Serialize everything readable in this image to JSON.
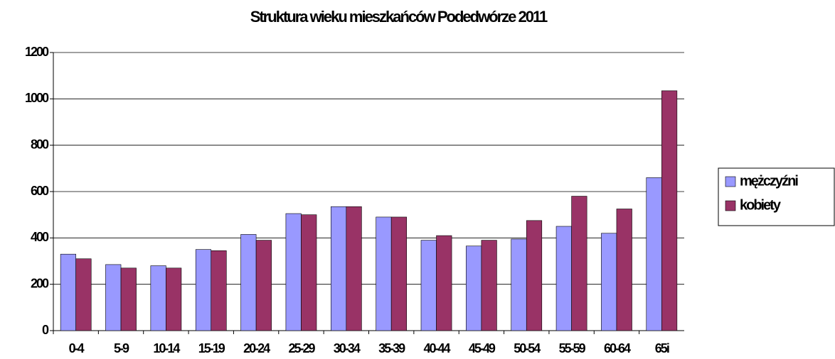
{
  "chart_data": {
    "type": "bar",
    "title": "Struktura wieku mieszkańców Podedwórze 2011",
    "categories": [
      "0-4",
      "5-9",
      "10-14",
      "15-19",
      "20-24",
      "25-29",
      "30-34",
      "35-39",
      "40-44",
      "45-49",
      "50-54",
      "55-59",
      "60-64",
      "65i"
    ],
    "series": [
      {
        "name": "mężczyźni",
        "color": "#9999ff",
        "values": [
          330,
          285,
          280,
          350,
          415,
          505,
          535,
          490,
          390,
          365,
          395,
          450,
          420,
          660
        ]
      },
      {
        "name": "kobiety",
        "color": "#993366",
        "values": [
          310,
          270,
          270,
          345,
          390,
          500,
          535,
          490,
          410,
          390,
          475,
          580,
          525,
          1035
        ]
      }
    ],
    "ylim": [
      0,
      1200
    ],
    "yticks": [
      0,
      200,
      400,
      600,
      800,
      1000,
      1200
    ],
    "grid": true,
    "legend": "right"
  }
}
